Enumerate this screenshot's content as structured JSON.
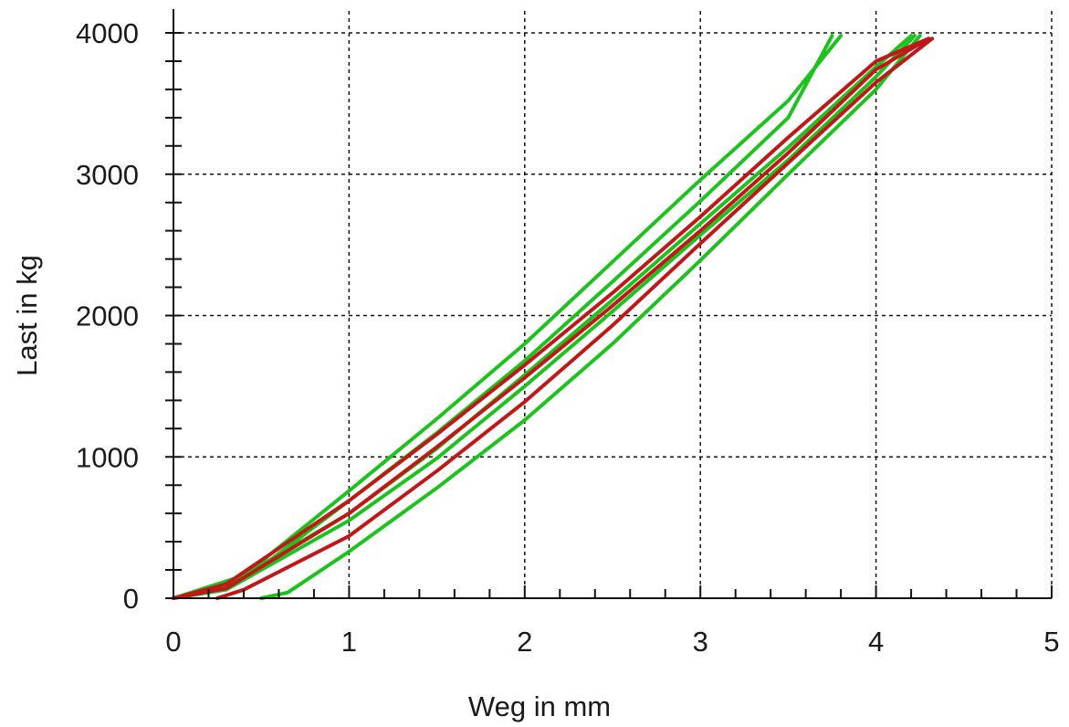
{
  "chart_data": {
    "type": "line",
    "title": "",
    "xlabel": "Weg in mm",
    "ylabel": "Last in kg",
    "xlim": [
      0,
      5
    ],
    "ylim": [
      0,
      4000
    ],
    "x_ticks": [
      0,
      1,
      2,
      3,
      4,
      5
    ],
    "y_ticks": [
      0,
      1000,
      2000,
      3000,
      4000
    ],
    "x_tick_labels": [
      "0",
      "1",
      "2",
      "3",
      "4",
      "5"
    ],
    "y_tick_labels": [
      "0",
      "1000",
      "2000",
      "3000",
      "4000"
    ],
    "x_minor_step": 0.2,
    "y_minor_step": 200,
    "grid": true,
    "legend": "none",
    "colors": {
      "green": "#1ec21e",
      "red": "#c01818"
    },
    "series": [
      {
        "color": "#1ec21e",
        "points": [
          [
            0.0,
            0
          ],
          [
            0.4,
            160
          ],
          [
            1.0,
            760
          ],
          [
            1.5,
            1270
          ],
          [
            2.0,
            1800
          ],
          [
            2.5,
            2380
          ],
          [
            3.0,
            2960
          ],
          [
            3.5,
            3520
          ],
          [
            3.8,
            3980
          ]
        ]
      },
      {
        "color": "#1ec21e",
        "points": [
          [
            0.0,
            0
          ],
          [
            0.4,
            130
          ],
          [
            1.0,
            690
          ],
          [
            1.5,
            1170
          ],
          [
            2.0,
            1680
          ],
          [
            2.5,
            2240
          ],
          [
            3.0,
            2810
          ],
          [
            3.5,
            3400
          ],
          [
            3.75,
            3980
          ]
        ]
      },
      {
        "color": "#1ec21e",
        "points": [
          [
            0.0,
            0
          ],
          [
            0.3,
            90
          ],
          [
            1.0,
            600
          ],
          [
            1.5,
            1060
          ],
          [
            2.0,
            1580
          ],
          [
            2.5,
            2110
          ],
          [
            3.0,
            2650
          ],
          [
            3.5,
            3190
          ],
          [
            4.0,
            3760
          ],
          [
            4.2,
            3980
          ]
        ]
      },
      {
        "color": "#1ec21e",
        "points": [
          [
            0.0,
            0
          ],
          [
            0.3,
            60
          ],
          [
            1.0,
            550
          ],
          [
            1.5,
            990
          ],
          [
            2.0,
            1500
          ],
          [
            2.5,
            2030
          ],
          [
            3.0,
            2570
          ],
          [
            3.5,
            3100
          ],
          [
            4.0,
            3690
          ],
          [
            4.22,
            3980
          ]
        ]
      },
      {
        "color": "#1ec21e",
        "points": [
          [
            0.5,
            0
          ],
          [
            0.65,
            40
          ],
          [
            1.0,
            330
          ],
          [
            1.5,
            780
          ],
          [
            2.0,
            1260
          ],
          [
            2.5,
            1800
          ],
          [
            3.0,
            2390
          ],
          [
            3.5,
            3000
          ],
          [
            4.0,
            3600
          ],
          [
            4.25,
            3980
          ]
        ]
      },
      {
        "color": "#c01818",
        "points": [
          [
            0.0,
            0
          ],
          [
            0.3,
            100
          ],
          [
            1.0,
            690
          ],
          [
            1.5,
            1160
          ],
          [
            2.0,
            1650
          ],
          [
            2.5,
            2160
          ],
          [
            3.0,
            2700
          ],
          [
            3.5,
            3260
          ],
          [
            4.0,
            3800
          ],
          [
            4.3,
            3960
          ]
        ]
      },
      {
        "color": "#c01818",
        "points": [
          [
            0.0,
            0
          ],
          [
            0.3,
            70
          ],
          [
            1.0,
            600
          ],
          [
            1.5,
            1070
          ],
          [
            2.0,
            1560
          ],
          [
            2.5,
            2070
          ],
          [
            3.0,
            2600
          ],
          [
            3.5,
            3150
          ],
          [
            4.0,
            3740
          ],
          [
            4.3,
            3960
          ]
        ]
      },
      {
        "color": "#c01818",
        "points": [
          [
            0.25,
            0
          ],
          [
            0.4,
            60
          ],
          [
            1.0,
            440
          ],
          [
            1.5,
            900
          ],
          [
            2.0,
            1390
          ],
          [
            2.5,
            1930
          ],
          [
            3.0,
            2510
          ],
          [
            3.5,
            3080
          ],
          [
            4.0,
            3650
          ],
          [
            4.32,
            3960
          ]
        ]
      }
    ]
  }
}
